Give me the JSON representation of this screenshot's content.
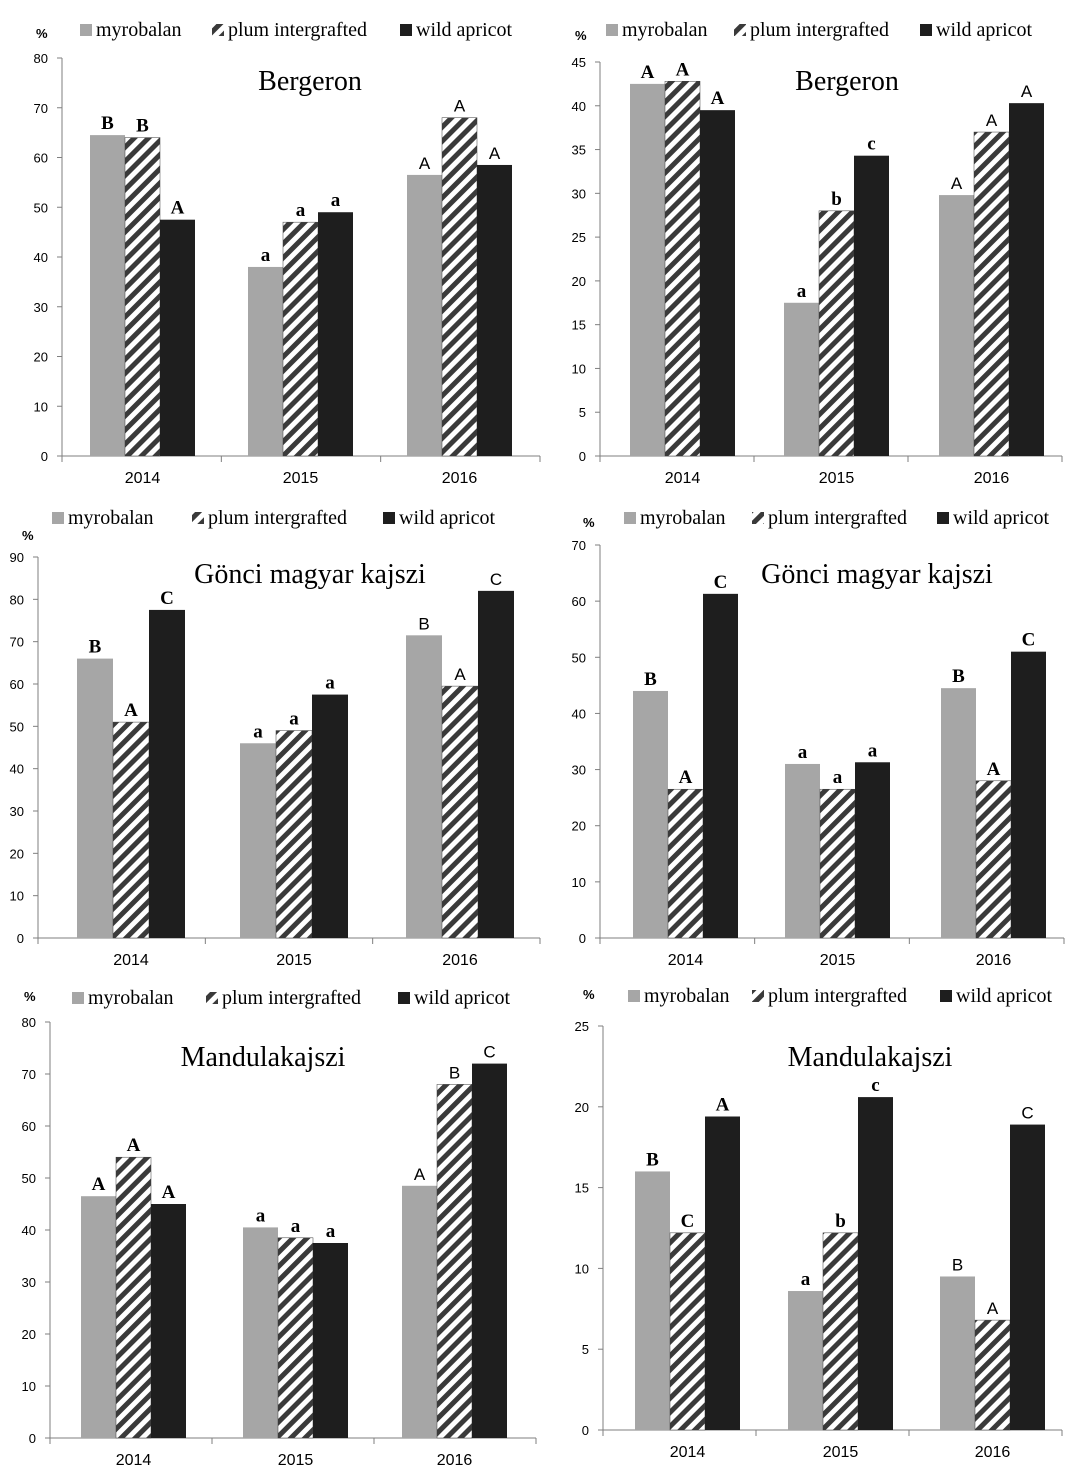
{
  "colors": {
    "myrobalan": "#a6a6a6",
    "plum_intergrafted_stripe": "#3a3a3a",
    "wild_apricot": "#1e1e1e",
    "axis": "#7f7f7f"
  },
  "chart_data": [
    {
      "type": "bar",
      "title": "Bergeron",
      "unit": "%",
      "categories": [
        "2014",
        "2015",
        "2016"
      ],
      "ylim": [
        0,
        80
      ],
      "yticks": [
        "0",
        "10",
        "20",
        "30",
        "40",
        "50",
        "60",
        "70",
        "80"
      ],
      "grid": false,
      "legend": "top",
      "series": [
        {
          "name": "myrobalan",
          "values": [
            64.5,
            38,
            56.5
          ],
          "letters": [
            "B",
            "a",
            "A"
          ]
        },
        {
          "name": "plum intergrafted",
          "values": [
            64,
            47,
            68
          ],
          "letters": [
            "B",
            "a",
            "A"
          ]
        },
        {
          "name": "wild apricot",
          "values": [
            47.5,
            49,
            58.5
          ],
          "letters": [
            "A",
            "a",
            "A"
          ]
        }
      ]
    },
    {
      "type": "bar",
      "title": "Bergeron",
      "unit": "%",
      "categories": [
        "2014",
        "2015",
        "2016"
      ],
      "ylim": [
        0,
        45
      ],
      "yticks": [
        "0",
        "5",
        "10",
        "15",
        "20",
        "25",
        "30",
        "35",
        "40",
        "45"
      ],
      "grid": false,
      "legend": "top",
      "series": [
        {
          "name": "myrobalan",
          "values": [
            42.5,
            17.5,
            29.8
          ],
          "letters": [
            "A",
            "a",
            "A"
          ]
        },
        {
          "name": "plum intergrafted",
          "values": [
            42.8,
            28,
            37
          ],
          "letters": [
            "A",
            "b",
            "A"
          ]
        },
        {
          "name": "wild apricot",
          "values": [
            39.5,
            34.3,
            40.3
          ],
          "letters": [
            "A",
            "c",
            "A"
          ]
        }
      ]
    },
    {
      "type": "bar",
      "title": "Gönci magyar kajszi",
      "unit": "%",
      "categories": [
        "2014",
        "2015",
        "2016"
      ],
      "ylim": [
        0,
        90
      ],
      "yticks": [
        "0",
        "10",
        "20",
        "30",
        "40",
        "50",
        "60",
        "70",
        "80",
        "90"
      ],
      "grid": false,
      "legend": "top",
      "series": [
        {
          "name": "myrobalan",
          "values": [
            66,
            46,
            71.5
          ],
          "letters": [
            "B",
            "a",
            "B"
          ]
        },
        {
          "name": "plum intergrafted",
          "values": [
            51,
            49,
            59.5
          ],
          "letters": [
            "A",
            "a",
            "A"
          ]
        },
        {
          "name": "wild apricot",
          "values": [
            77.5,
            57.5,
            82
          ],
          "letters": [
            "C",
            "a",
            "C"
          ]
        }
      ]
    },
    {
      "type": "bar",
      "title": "Gönci magyar kajszi",
      "unit": "%",
      "categories": [
        "2014",
        "2015",
        "2016"
      ],
      "ylim": [
        0,
        70
      ],
      "yticks": [
        "0",
        "10",
        "20",
        "30",
        "40",
        "50",
        "60",
        "70"
      ],
      "grid": false,
      "legend": "top",
      "series": [
        {
          "name": "myrobalan",
          "values": [
            44,
            31,
            44.5
          ],
          "letters": [
            "B",
            "a",
            "B"
          ]
        },
        {
          "name": "plum intergrafted",
          "values": [
            26.5,
            26.5,
            28
          ],
          "letters": [
            "A",
            "a",
            "A"
          ]
        },
        {
          "name": "wild apricot",
          "values": [
            61.3,
            31.3,
            51
          ],
          "letters": [
            "C",
            "a",
            "C"
          ]
        }
      ]
    },
    {
      "type": "bar",
      "title": "Mandulakajszi",
      "unit": "%",
      "categories": [
        "2014",
        "2015",
        "2016"
      ],
      "ylim": [
        0,
        80
      ],
      "yticks": [
        "0",
        "10",
        "20",
        "30",
        "40",
        "50",
        "60",
        "70",
        "80"
      ],
      "grid": false,
      "legend": "top",
      "series": [
        {
          "name": "myrobalan",
          "values": [
            46.5,
            40.5,
            48.5
          ],
          "letters": [
            "A",
            "a",
            "A"
          ]
        },
        {
          "name": "plum intergrafted",
          "values": [
            54,
            38.5,
            68
          ],
          "letters": [
            "A",
            "a",
            "B"
          ]
        },
        {
          "name": "wild apricot",
          "values": [
            45,
            37.5,
            72
          ],
          "letters": [
            "A",
            "a",
            "C"
          ]
        }
      ]
    },
    {
      "type": "bar",
      "title": "Mandulakajszi",
      "unit": "%",
      "categories": [
        "2014",
        "2015",
        "2016"
      ],
      "ylim": [
        0,
        25
      ],
      "yticks": [
        "0",
        "5",
        "10",
        "15",
        "20",
        "25"
      ],
      "grid": false,
      "legend": "top",
      "series": [
        {
          "name": "myrobalan",
          "values": [
            16,
            8.6,
            9.5
          ],
          "letters": [
            "B",
            "a",
            "B"
          ]
        },
        {
          "name": "plum intergrafted",
          "values": [
            12.2,
            12.2,
            6.8
          ],
          "letters": [
            "C",
            "b",
            "A"
          ]
        },
        {
          "name": "wild apricot",
          "values": [
            19.4,
            20.6,
            18.9
          ],
          "letters": [
            "A",
            "c",
            "C"
          ]
        }
      ]
    }
  ]
}
